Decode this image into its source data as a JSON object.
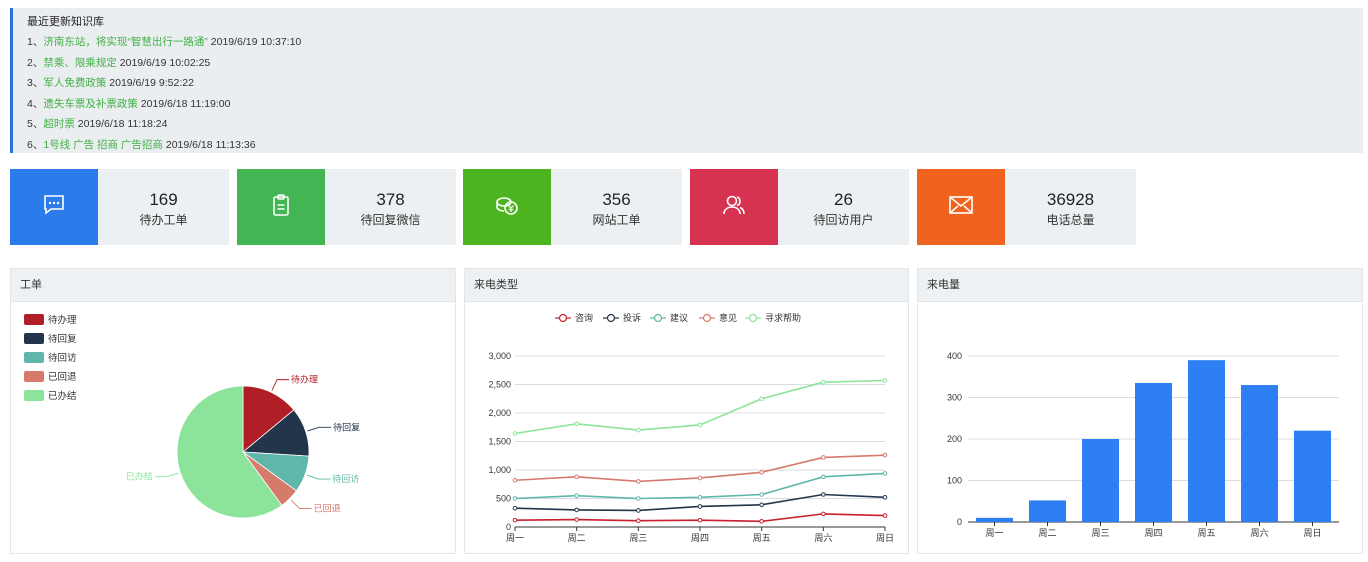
{
  "notice": {
    "title": "最近更新知识库",
    "items": [
      {
        "idx": "1、",
        "title": "济南东站，将实现“智慧出行一路通”",
        "time": "2019/6/19 10:37:10"
      },
      {
        "idx": "2、",
        "title": "禁乘、限乘规定",
        "time": "2019/6/19 10:02:25"
      },
      {
        "idx": "3、",
        "title": "军人免费政策",
        "time": "2019/6/19 9:52:22"
      },
      {
        "idx": "4、",
        "title": "遗失车票及补票政策",
        "time": "2019/6/18 11:19:00"
      },
      {
        "idx": "5、",
        "title": "超时票",
        "time": "2019/6/18 11:18:24"
      },
      {
        "idx": "6、",
        "title": "1号线 广告 招商 广告招商",
        "time": "2019/6/18 11:13:36"
      }
    ]
  },
  "cards": [
    {
      "value": "169",
      "label": "待办工单",
      "color": "#2b7bea",
      "icon": "message-icon"
    },
    {
      "value": "378",
      "label": "待回复微信",
      "color": "#43b553",
      "icon": "clipboard-icon"
    },
    {
      "value": "356",
      "label": "网站工单",
      "color": "#4cb41e",
      "icon": "coins-icon"
    },
    {
      "value": "26",
      "label": "待回访用户",
      "color": "#d63351",
      "icon": "users-icon"
    },
    {
      "value": "36928",
      "label": "电话总量",
      "color": "#f0631e",
      "icon": "mail-icon"
    }
  ],
  "panels": {
    "pie": "工单",
    "line": "来电类型",
    "bar": "来电量"
  },
  "chart_data": [
    {
      "type": "pie",
      "title": "工单",
      "legend_position": "top-left",
      "categories": [
        "待办理",
        "待回复",
        "待回访",
        "已回退",
        "已办结"
      ],
      "values": [
        14,
        12,
        9,
        5,
        60
      ],
      "colors": [
        "#b01e26",
        "#22354b",
        "#5eb7a8",
        "#d67a6c",
        "#8be49a"
      ]
    },
    {
      "type": "line",
      "title": "来电类型",
      "legend_position": "top",
      "categories": [
        "周一",
        "周二",
        "周三",
        "周四",
        "周五",
        "周六",
        "周日"
      ],
      "ylim": [
        0,
        3000
      ],
      "yticks": [
        "0",
        "500",
        "1,000",
        "1,500",
        "2,000",
        "2,500",
        "3,000"
      ],
      "grid": true,
      "series": [
        {
          "name": "咨询",
          "color": "#c8202c",
          "values": [
            120,
            130,
            110,
            120,
            100,
            230,
            200
          ]
        },
        {
          "name": "投诉",
          "color": "#22354b",
          "values": [
            330,
            300,
            290,
            360,
            390,
            570,
            520
          ]
        },
        {
          "name": "建议",
          "color": "#5eb7a8",
          "values": [
            500,
            550,
            500,
            520,
            570,
            880,
            940
          ]
        },
        {
          "name": "意见",
          "color": "#d67a6c",
          "values": [
            820,
            880,
            800,
            860,
            960,
            1220,
            1260
          ]
        },
        {
          "name": "寻求帮助",
          "color": "#8be49a",
          "values": [
            1640,
            1810,
            1700,
            1790,
            2250,
            2540,
            2570
          ]
        }
      ]
    },
    {
      "type": "bar",
      "title": "来电量",
      "categories": [
        "周一",
        "周二",
        "周三",
        "周四",
        "周五",
        "周六",
        "周日"
      ],
      "values": [
        10,
        52,
        200,
        335,
        390,
        330,
        220
      ],
      "ylim": [
        0,
        400
      ],
      "yticks": [
        "0",
        "100",
        "200",
        "300",
        "400"
      ],
      "grid": true,
      "color": "#2d7ff3"
    }
  ]
}
